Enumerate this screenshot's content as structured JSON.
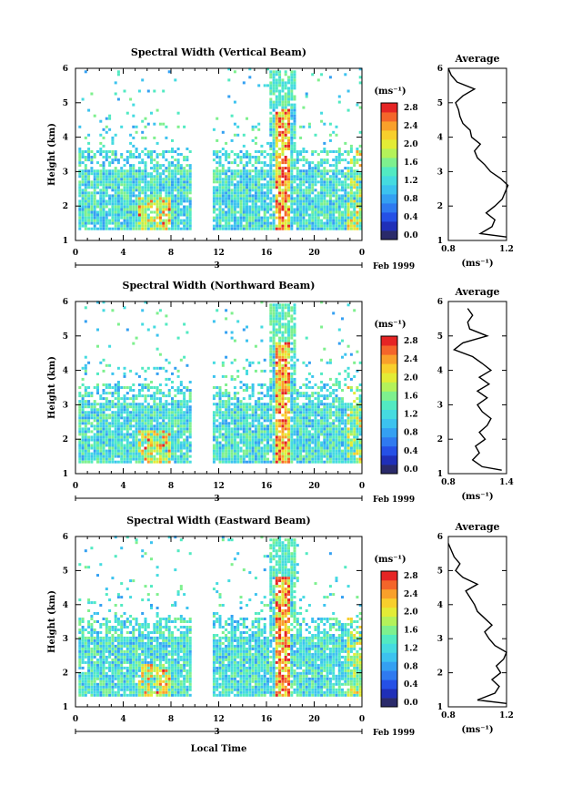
{
  "chart_data": [
    {
      "type": "heatmap",
      "title": "Spectral Width (Vertical Beam)",
      "ylabel": "Height (km)",
      "xlabel": "",
      "x_ticks": [
        "0",
        "4",
        "8",
        "12",
        "16",
        "20",
        "0"
      ],
      "y_ticks": [
        "1",
        "2",
        "3",
        "4",
        "5",
        "6"
      ],
      "xlim": [
        0,
        24
      ],
      "ylim": [
        1,
        6
      ],
      "date_axis": {
        "day_label": "3",
        "month_year": "Feb 1999"
      },
      "colorbar": {
        "unit": "(ms⁻¹)",
        "ticks": [
          "2.8",
          "2.4",
          "2.0",
          "1.6",
          "1.2",
          "0.8",
          "0.4",
          "0.0"
        ],
        "range": [
          0,
          3.0
        ]
      },
      "profile": {
        "title": "Average",
        "xlabel": "(ms⁻¹)",
        "x_ticks": [
          "0.8",
          "1.2"
        ],
        "xlim": [
          0.8,
          1.2
        ],
        "ylim": [
          1,
          6
        ],
        "heights": [
          1.1,
          1.2,
          1.4,
          1.6,
          1.8,
          2.0,
          2.2,
          2.4,
          2.6,
          2.8,
          3.0,
          3.2,
          3.4,
          3.6,
          3.8,
          4.0,
          4.2,
          4.4,
          4.6,
          4.8,
          5.0,
          5.2,
          5.4,
          5.6,
          5.8,
          6.0
        ],
        "values": [
          1.2,
          1.02,
          1.1,
          1.12,
          1.06,
          1.12,
          1.17,
          1.19,
          1.21,
          1.16,
          1.09,
          1.05,
          1.0,
          0.98,
          1.02,
          0.96,
          0.95,
          0.9,
          0.88,
          0.87,
          0.85,
          0.9,
          0.98,
          0.86,
          0.82,
          0.8
        ]
      }
    },
    {
      "type": "heatmap",
      "title": "Spectral Width (Northward Beam)",
      "ylabel": "Height (km)",
      "xlabel": "",
      "x_ticks": [
        "0",
        "4",
        "8",
        "12",
        "16",
        "20",
        "0"
      ],
      "y_ticks": [
        "1",
        "2",
        "3",
        "4",
        "5",
        "6"
      ],
      "xlim": [
        0,
        24
      ],
      "ylim": [
        1,
        6
      ],
      "date_axis": {
        "day_label": "3",
        "month_year": "Feb 1999"
      },
      "colorbar": {
        "unit": "(ms⁻¹)",
        "ticks": [
          "2.8",
          "2.4",
          "2.0",
          "1.6",
          "1.2",
          "0.8",
          "0.4",
          "0.0"
        ],
        "range": [
          0,
          3.0
        ]
      },
      "profile": {
        "title": "Average",
        "xlabel": "(ms⁻¹)",
        "x_ticks": [
          "0.8",
          "1.4"
        ],
        "xlim": [
          0.8,
          1.4
        ],
        "ylim": [
          1,
          6
        ],
        "heights": [
          1.1,
          1.2,
          1.4,
          1.6,
          1.8,
          2.0,
          2.2,
          2.4,
          2.6,
          2.8,
          3.0,
          3.2,
          3.4,
          3.6,
          3.8,
          4.0,
          4.2,
          4.4,
          4.6,
          4.8,
          5.0,
          5.2,
          5.4,
          5.6,
          5.8
        ],
        "values": [
          1.35,
          1.15,
          1.05,
          1.12,
          1.08,
          1.18,
          1.12,
          1.2,
          1.24,
          1.15,
          1.1,
          1.2,
          1.1,
          1.22,
          1.12,
          1.24,
          1.15,
          1.05,
          0.86,
          0.95,
          1.2,
          1.02,
          1.0,
          1.05,
          1.0
        ]
      }
    },
    {
      "type": "heatmap",
      "title": "Spectral Width (Eastward Beam)",
      "ylabel": "Height (km)",
      "xlabel": "Local Time",
      "x_ticks": [
        "0",
        "4",
        "8",
        "12",
        "16",
        "20",
        "0"
      ],
      "y_ticks": [
        "1",
        "2",
        "3",
        "4",
        "5",
        "6"
      ],
      "xlim": [
        0,
        24
      ],
      "ylim": [
        1,
        6
      ],
      "date_axis": {
        "day_label": "3",
        "month_year": "Feb 1999"
      },
      "colorbar": {
        "unit": "(ms⁻¹)",
        "ticks": [
          "2.8",
          "2.4",
          "2.0",
          "1.6",
          "1.2",
          "0.8",
          "0.4",
          "0.0"
        ],
        "range": [
          0,
          3.0
        ]
      },
      "profile": {
        "title": "Average",
        "xlabel": "(ms⁻¹)",
        "x_ticks": [
          "0.8",
          "1.2"
        ],
        "xlim": [
          0.8,
          1.2
        ],
        "ylim": [
          1,
          6
        ],
        "heights": [
          1.1,
          1.2,
          1.4,
          1.6,
          1.8,
          2.0,
          2.2,
          2.4,
          2.6,
          2.8,
          3.0,
          3.2,
          3.4,
          3.6,
          3.8,
          4.0,
          4.2,
          4.4,
          4.6,
          4.8,
          5.0,
          5.2,
          5.4,
          5.6,
          5.8
        ],
        "values": [
          1.2,
          1.0,
          1.12,
          1.15,
          1.1,
          1.16,
          1.13,
          1.18,
          1.2,
          1.12,
          1.08,
          1.05,
          1.1,
          1.05,
          1.0,
          0.98,
          0.95,
          0.92,
          1.0,
          0.9,
          0.85,
          0.88,
          0.84,
          0.82,
          0.8
        ]
      }
    }
  ]
}
